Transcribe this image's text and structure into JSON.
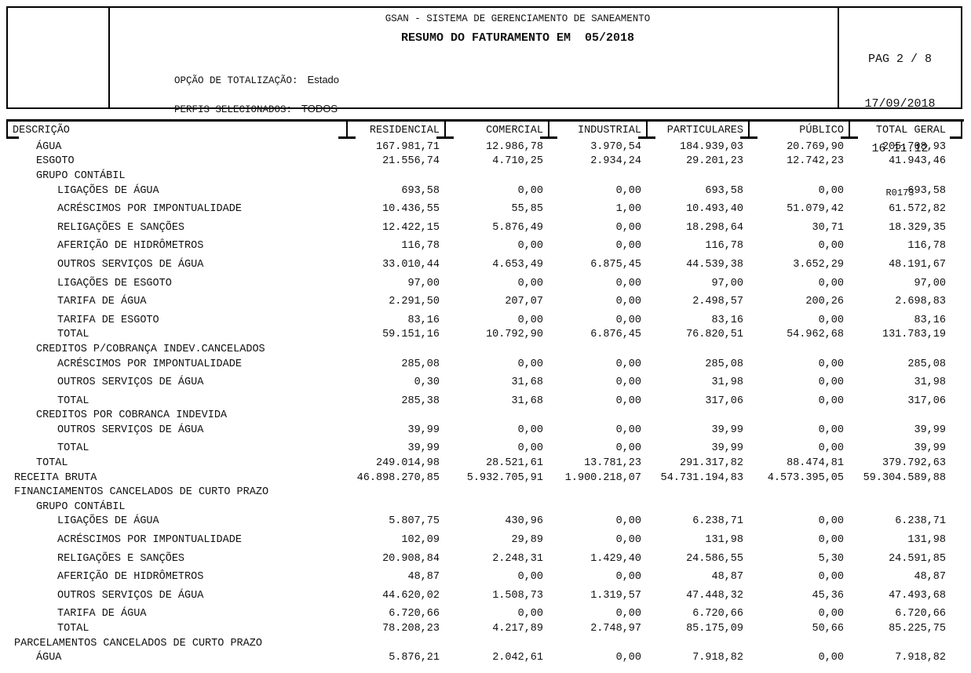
{
  "header": {
    "system_title": "GSAN - SISTEMA DE GERENCIAMENTO DE SANEAMENTO",
    "report_title": "RESUMO DO FATURAMENTO EM  05/2018",
    "totalization_label": "OPÇÃO DE TOTALIZAÇÃO:",
    "totalization_value": "Estado",
    "profiles_label": "PERFIS SELECIONADOS:",
    "profiles_value": "TODOS",
    "page_info": "PAG 2 / 8",
    "date": "17/09/2018",
    "time": "16.11.12",
    "report_code": "R0173"
  },
  "table": {
    "columns": [
      "DESCRIÇÃO",
      "RESIDENCIAL",
      "COMERCIAL",
      "INDUSTRIAL",
      "PARTICULARES",
      "PÚBLICO",
      "TOTAL GERAL"
    ],
    "rows": [
      {
        "label": "ÁGUA",
        "indent": 1,
        "sp": false,
        "values": [
          "167.981,71",
          "12.986,78",
          "3.970,54",
          "184.939,03",
          "20.769,90",
          "205.708,93"
        ]
      },
      {
        "label": "ESGOTO",
        "indent": 1,
        "sp": false,
        "values": [
          "21.556,74",
          "4.710,25",
          "2.934,24",
          "29.201,23",
          "12.742,23",
          "41.943,46"
        ]
      },
      {
        "label": "GRUPO CONTÁBIL",
        "indent": 1,
        "sp": false,
        "values": null
      },
      {
        "label": "LIGAÇÕES DE ÁGUA",
        "indent": 2,
        "sp": false,
        "values": [
          "693,58",
          "0,00",
          "0,00",
          "693,58",
          "0,00",
          "693,58"
        ]
      },
      {
        "label": "ACRÉSCIMOS POR IMPONTUALIDADE",
        "indent": 2,
        "sp": true,
        "values": [
          "10.436,55",
          "55,85",
          "1,00",
          "10.493,40",
          "51.079,42",
          "61.572,82"
        ]
      },
      {
        "label": "RELIGAÇÕES E SANÇÕES",
        "indent": 2,
        "sp": true,
        "values": [
          "12.422,15",
          "5.876,49",
          "0,00",
          "18.298,64",
          "30,71",
          "18.329,35"
        ]
      },
      {
        "label": "AFERIÇÃO DE HIDRÔMETROS",
        "indent": 2,
        "sp": true,
        "values": [
          "116,78",
          "0,00",
          "0,00",
          "116,78",
          "0,00",
          "116,78"
        ]
      },
      {
        "label": "OUTROS SERVIÇOS DE ÁGUA",
        "indent": 2,
        "sp": true,
        "values": [
          "33.010,44",
          "4.653,49",
          "6.875,45",
          "44.539,38",
          "3.652,29",
          "48.191,67"
        ]
      },
      {
        "label": "LIGAÇÕES DE ESGOTO",
        "indent": 2,
        "sp": true,
        "values": [
          "97,00",
          "0,00",
          "0,00",
          "97,00",
          "0,00",
          "97,00"
        ]
      },
      {
        "label": "TARIFA DE ÁGUA",
        "indent": 2,
        "sp": true,
        "values": [
          "2.291,50",
          "207,07",
          "0,00",
          "2.498,57",
          "200,26",
          "2.698,83"
        ]
      },
      {
        "label": "TARIFA DE ESGOTO",
        "indent": 2,
        "sp": true,
        "values": [
          "83,16",
          "0,00",
          "0,00",
          "83,16",
          "0,00",
          "83,16"
        ]
      },
      {
        "label": "TOTAL",
        "indent": 2,
        "sp": false,
        "values": [
          "59.151,16",
          "10.792,90",
          "6.876,45",
          "76.820,51",
          "54.962,68",
          "131.783,19"
        ]
      },
      {
        "label": "CREDITOS P/COBRANÇA INDEV.CANCELADOS",
        "indent": 1,
        "sp": false,
        "values": null
      },
      {
        "label": "ACRÉSCIMOS POR IMPONTUALIDADE",
        "indent": 2,
        "sp": false,
        "values": [
          "285,08",
          "0,00",
          "0,00",
          "285,08",
          "0,00",
          "285,08"
        ]
      },
      {
        "label": "OUTROS SERVIÇOS DE ÁGUA",
        "indent": 2,
        "sp": true,
        "values": [
          "0,30",
          "31,68",
          "0,00",
          "31,98",
          "0,00",
          "31,98"
        ]
      },
      {
        "label": "TOTAL",
        "indent": 2,
        "sp": true,
        "values": [
          "285,38",
          "31,68",
          "0,00",
          "317,06",
          "0,00",
          "317,06"
        ]
      },
      {
        "label": "CREDITOS POR COBRANCA INDEVIDA",
        "indent": 1,
        "sp": false,
        "values": null
      },
      {
        "label": "OUTROS SERVIÇOS DE ÁGUA",
        "indent": 2,
        "sp": false,
        "values": [
          "39,99",
          "0,00",
          "0,00",
          "39,99",
          "0,00",
          "39,99"
        ]
      },
      {
        "label": "TOTAL",
        "indent": 2,
        "sp": true,
        "values": [
          "39,99",
          "0,00",
          "0,00",
          "39,99",
          "0,00",
          "39,99"
        ]
      },
      {
        "label": "TOTAL",
        "indent": 1,
        "sp": false,
        "values": [
          "249.014,98",
          "28.521,61",
          "13.781,23",
          "291.317,82",
          "88.474,81",
          "379.792,63"
        ]
      },
      {
        "label": "RECEITA BRUTA",
        "indent": 0,
        "sp": false,
        "values": [
          "46.898.270,85",
          "5.932.705,91",
          "1.900.218,07",
          "54.731.194,83",
          "4.573.395,05",
          "59.304.589,88"
        ]
      },
      {
        "label": "FINANCIAMENTOS CANCELADOS DE CURTO PRAZO",
        "indent": 0,
        "sp": false,
        "values": null
      },
      {
        "label": "GRUPO CONTÁBIL",
        "indent": 1,
        "sp": false,
        "values": null
      },
      {
        "label": "LIGAÇÕES DE ÁGUA",
        "indent": 2,
        "sp": false,
        "values": [
          "5.807,75",
          "430,96",
          "0,00",
          "6.238,71",
          "0,00",
          "6.238,71"
        ]
      },
      {
        "label": "ACRÉSCIMOS POR IMPONTUALIDADE",
        "indent": 2,
        "sp": true,
        "values": [
          "102,09",
          "29,89",
          "0,00",
          "131,98",
          "0,00",
          "131,98"
        ]
      },
      {
        "label": "RELIGAÇÕES E SANÇÕES",
        "indent": 2,
        "sp": true,
        "values": [
          "20.908,84",
          "2.248,31",
          "1.429,40",
          "24.586,55",
          "5,30",
          "24.591,85"
        ]
      },
      {
        "label": "AFERIÇÃO DE HIDRÔMETROS",
        "indent": 2,
        "sp": true,
        "values": [
          "48,87",
          "0,00",
          "0,00",
          "48,87",
          "0,00",
          "48,87"
        ]
      },
      {
        "label": "OUTROS SERVIÇOS DE ÁGUA",
        "indent": 2,
        "sp": true,
        "values": [
          "44.620,02",
          "1.508,73",
          "1.319,57",
          "47.448,32",
          "45,36",
          "47.493,68"
        ]
      },
      {
        "label": "TARIFA DE ÁGUA",
        "indent": 2,
        "sp": true,
        "values": [
          "6.720,66",
          "0,00",
          "0,00",
          "6.720,66",
          "0,00",
          "6.720,66"
        ]
      },
      {
        "label": "TOTAL",
        "indent": 2,
        "sp": false,
        "values": [
          "78.208,23",
          "4.217,89",
          "2.748,97",
          "85.175,09",
          "50,66",
          "85.225,75"
        ]
      },
      {
        "label": "PARCELAMENTOS CANCELADOS DE CURTO PRAZO",
        "indent": 0,
        "sp": false,
        "values": null
      },
      {
        "label": "ÁGUA",
        "indent": 1,
        "sp": false,
        "values": [
          "5.876,21",
          "2.042,61",
          "0,00",
          "7.918,82",
          "0,00",
          "7.918,82"
        ]
      }
    ]
  }
}
